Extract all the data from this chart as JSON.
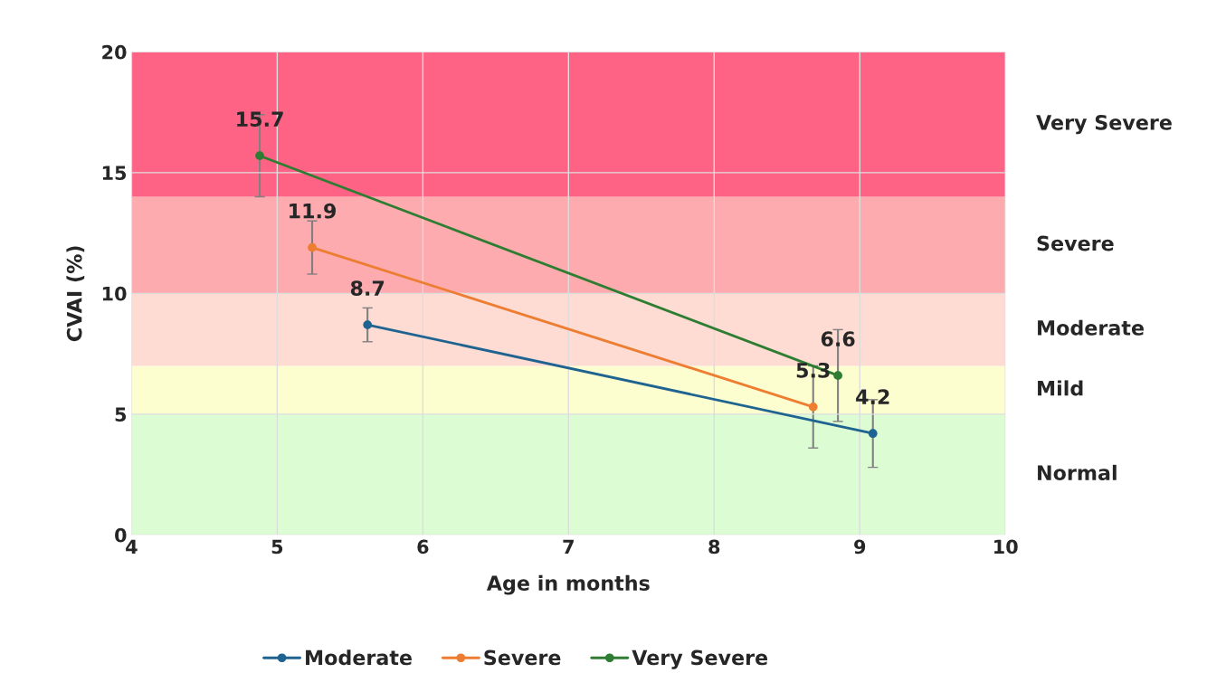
{
  "chart_data": {
    "type": "line",
    "xlabel": "Age in months",
    "ylabel": "CVAI (%)",
    "xlim": [
      4,
      10
    ],
    "xticks": [
      4,
      5,
      6,
      7,
      8,
      9,
      10
    ],
    "ylim": [
      0,
      20
    ],
    "yticks": [
      0,
      5,
      10,
      15,
      20
    ],
    "grid": true,
    "legend": "bottom",
    "marker": "circle",
    "line_style": "solid",
    "data_labels": true,
    "bands": [
      {
        "axis": "y",
        "from": 0,
        "to": 5,
        "label": "Normal",
        "color": "#dcfcd4"
      },
      {
        "axis": "y",
        "from": 5,
        "to": 7,
        "label": "Mild",
        "color": "#fdfed0"
      },
      {
        "axis": "y",
        "from": 7,
        "to": 10,
        "label": "Moderate",
        "color": "#fedcd4"
      },
      {
        "axis": "y",
        "from": 10,
        "to": 14,
        "label": "Severe",
        "color": "#fdabae"
      },
      {
        "axis": "y",
        "from": 14,
        "to": 20,
        "label": "Very Severe",
        "color": "#fe6385"
      }
    ],
    "series": [
      {
        "name": "Moderate",
        "color": "#1f6391",
        "x": [
          5.62,
          9.09
        ],
        "values": [
          8.7,
          4.2
        ],
        "errors": [
          0.7,
          1.4
        ]
      },
      {
        "name": "Severe",
        "color": "#ed7d31",
        "x": [
          5.24,
          8.68
        ],
        "values": [
          11.9,
          5.3
        ],
        "errors": [
          1.1,
          1.7
        ]
      },
      {
        "name": "Very Severe",
        "color": "#2e7d32",
        "x": [
          4.88,
          8.85
        ],
        "values": [
          15.7,
          6.6
        ],
        "errors": [
          1.7,
          1.9
        ]
      }
    ]
  }
}
